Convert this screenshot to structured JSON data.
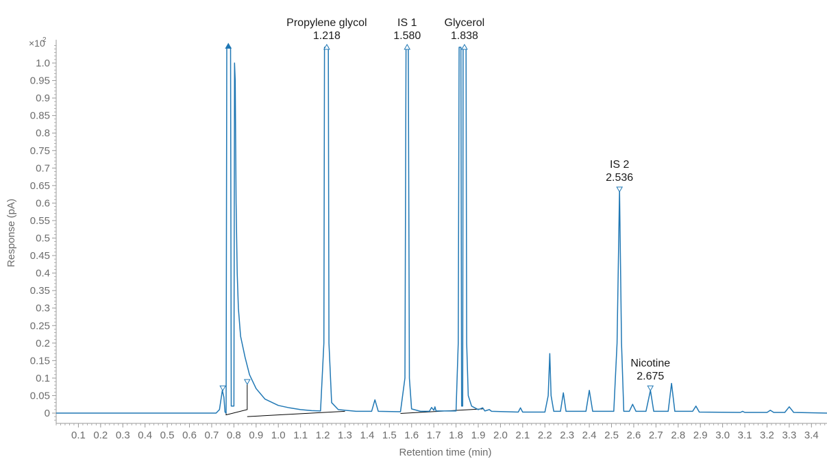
{
  "chart_data": {
    "type": "line",
    "xlabel": "Retention time (min)",
    "ylabel": "Response (pA)",
    "y_multiplier_base": "×10",
    "y_multiplier_exp": "2",
    "xlim": [
      0.0,
      3.47
    ],
    "ylim": [
      -0.03,
      1.05
    ],
    "x_ticks": [
      "0.1",
      "0.2",
      "0.3",
      "0.4",
      "0.5",
      "0.6",
      "0.7",
      "0.8",
      "0.9",
      "1.0",
      "1.1",
      "1.2",
      "1.3",
      "1.4",
      "1.5",
      "1.6",
      "1.7",
      "1.8",
      "1.9",
      "2.0",
      "2.1",
      "2.2",
      "2.3",
      "2.4",
      "2.5",
      "2.6",
      "2.7",
      "2.8",
      "2.9",
      "3.0",
      "3.1",
      "3.2",
      "3.3",
      "3.4"
    ],
    "y_ticks": [
      "0",
      "0.05",
      "0.1",
      "0.15",
      "0.2",
      "0.25",
      "0.3",
      "0.35",
      "0.4",
      "0.45",
      "0.5",
      "0.55",
      "0.6",
      "0.65",
      "0.7",
      "0.75",
      "0.8",
      "0.85",
      "0.9",
      "0.95",
      "1.0"
    ],
    "colors": {
      "trace": "#1f77b4",
      "baseline": "#000000",
      "axis": "#9a9a9a",
      "text": "#1a1a1a"
    },
    "annotations": [
      {
        "name": "Propylene glycol",
        "rt": "1.218",
        "x": 1.218,
        "y": 1.045
      },
      {
        "name": "IS 1",
        "rt": "1.580",
        "x": 1.58,
        "y": 1.045
      },
      {
        "name": "Glycerol",
        "rt": "1.838",
        "x": 1.838,
        "y": 1.045
      },
      {
        "name": "IS 2",
        "rt": "2.536",
        "x": 2.536,
        "y": 0.64
      },
      {
        "name": "Nicotine",
        "rt": "2.675",
        "x": 2.675,
        "y": 0.072
      }
    ],
    "series": [
      {
        "values": [
          [
            0.0,
            0.0
          ],
          [
            0.72,
            0.0
          ],
          [
            0.735,
            0.01
          ],
          [
            0.748,
            0.065
          ],
          [
            0.755,
            0.045
          ],
          [
            0.76,
            0.003
          ],
          [
            0.765,
            0.0
          ],
          [
            0.768,
            1.045
          ],
          [
            0.785,
            1.045
          ],
          [
            0.788,
            0.02
          ],
          [
            0.8,
            0.02
          ],
          [
            0.803,
            1.0
          ],
          [
            0.806,
            0.95
          ],
          [
            0.81,
            0.6
          ],
          [
            0.815,
            0.4
          ],
          [
            0.82,
            0.3
          ],
          [
            0.83,
            0.22
          ],
          [
            0.85,
            0.16
          ],
          [
            0.87,
            0.11
          ],
          [
            0.9,
            0.07
          ],
          [
            0.94,
            0.04
          ],
          [
            1.0,
            0.022
          ],
          [
            1.05,
            0.015
          ],
          [
            1.1,
            0.01
          ],
          [
            1.15,
            0.007
          ],
          [
            1.19,
            0.006
          ],
          [
            1.205,
            0.2
          ],
          [
            1.208,
            1.045
          ],
          [
            1.225,
            1.045
          ],
          [
            1.228,
            0.2
          ],
          [
            1.24,
            0.03
          ],
          [
            1.27,
            0.01
          ],
          [
            1.35,
            0.005
          ],
          [
            1.42,
            0.005
          ],
          [
            1.435,
            0.038
          ],
          [
            1.45,
            0.005
          ],
          [
            1.55,
            0.004
          ],
          [
            1.57,
            0.1
          ],
          [
            1.575,
            1.045
          ],
          [
            1.585,
            1.045
          ],
          [
            1.59,
            0.1
          ],
          [
            1.6,
            0.012
          ],
          [
            1.64,
            0.005
          ],
          [
            1.68,
            0.005
          ],
          [
            1.69,
            0.016
          ],
          [
            1.7,
            0.008
          ],
          [
            1.705,
            0.018
          ],
          [
            1.71,
            0.006
          ],
          [
            1.8,
            0.006
          ],
          [
            1.81,
            0.2
          ],
          [
            1.814,
            1.045
          ],
          [
            1.822,
            1.045
          ],
          [
            1.825,
            0.02
          ],
          [
            1.83,
            0.02
          ],
          [
            1.832,
            1.045
          ],
          [
            1.845,
            1.045
          ],
          [
            1.848,
            0.2
          ],
          [
            1.855,
            0.05
          ],
          [
            1.87,
            0.02
          ],
          [
            1.9,
            0.01
          ],
          [
            1.92,
            0.015
          ],
          [
            1.93,
            0.006
          ],
          [
            1.95,
            0.01
          ],
          [
            1.96,
            0.005
          ],
          [
            2.08,
            0.003
          ],
          [
            2.09,
            0.015
          ],
          [
            2.1,
            0.003
          ],
          [
            2.2,
            0.003
          ],
          [
            2.215,
            0.05
          ],
          [
            2.222,
            0.17
          ],
          [
            2.228,
            0.05
          ],
          [
            2.24,
            0.005
          ],
          [
            2.27,
            0.005
          ],
          [
            2.283,
            0.058
          ],
          [
            2.295,
            0.005
          ],
          [
            2.385,
            0.005
          ],
          [
            2.4,
            0.065
          ],
          [
            2.415,
            0.005
          ],
          [
            2.51,
            0.005
          ],
          [
            2.525,
            0.2
          ],
          [
            2.536,
            0.64
          ],
          [
            2.545,
            0.2
          ],
          [
            2.555,
            0.005
          ],
          [
            2.58,
            0.005
          ],
          [
            2.595,
            0.025
          ],
          [
            2.61,
            0.005
          ],
          [
            2.655,
            0.005
          ],
          [
            2.675,
            0.065
          ],
          [
            2.69,
            0.005
          ],
          [
            2.755,
            0.005
          ],
          [
            2.77,
            0.085
          ],
          [
            2.785,
            0.005
          ],
          [
            2.865,
            0.005
          ],
          [
            2.88,
            0.02
          ],
          [
            2.895,
            0.003
          ],
          [
            3.08,
            0.002
          ],
          [
            3.09,
            0.005
          ],
          [
            3.1,
            0.002
          ],
          [
            3.2,
            0.002
          ],
          [
            3.215,
            0.008
          ],
          [
            3.23,
            0.002
          ],
          [
            3.28,
            0.002
          ],
          [
            3.3,
            0.018
          ],
          [
            3.32,
            0.002
          ],
          [
            3.47,
            0.0
          ]
        ]
      }
    ],
    "baselines": [
      [
        [
          0.765,
          0.0
        ],
        [
          0.765,
          -0.005
        ],
        [
          0.86,
          0.01
        ],
        [
          0.86,
          0.09
        ]
      ],
      [
        [
          0.86,
          -0.01
        ],
        [
          1.3,
          0.005
        ]
      ],
      [
        [
          1.55,
          -0.001
        ],
        [
          1.92,
          0.012
        ]
      ]
    ],
    "markers": [
      {
        "x": 0.75,
        "y": 0.072,
        "shape": "triangle-down"
      },
      {
        "x": 0.86,
        "y": 0.09,
        "shape": "triangle-down"
      },
      {
        "x": 0.775,
        "y": 1.048,
        "shape": "triangle-up-filled"
      },
      {
        "x": 1.218,
        "y": 1.045,
        "shape": "triangle-up"
      },
      {
        "x": 1.58,
        "y": 1.045,
        "shape": "triangle-up"
      },
      {
        "x": 1.838,
        "y": 1.045,
        "shape": "triangle-up"
      },
      {
        "x": 2.536,
        "y": 0.64,
        "shape": "triangle-down"
      },
      {
        "x": 2.675,
        "y": 0.072,
        "shape": "triangle-down"
      }
    ]
  }
}
